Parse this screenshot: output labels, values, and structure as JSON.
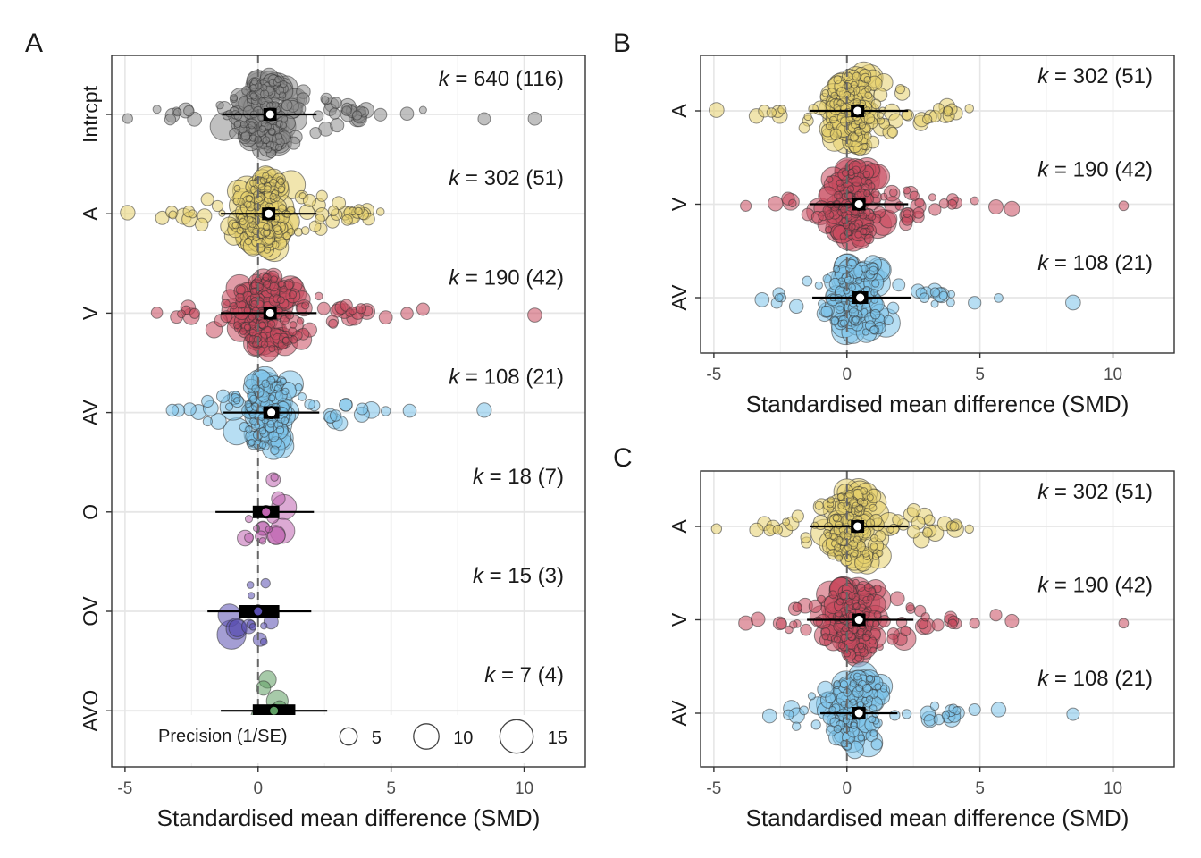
{
  "figure": {
    "panels": [
      {
        "id": "A",
        "label": "A"
      },
      {
        "id": "B",
        "label": "B"
      },
      {
        "id": "C",
        "label": "C"
      }
    ]
  },
  "colors": {
    "Intrcpt": "#8c8c8c",
    "A": "#e6cf6b",
    "V": "#c94a5f",
    "AV": "#7cc3ea",
    "O": "#c064b0",
    "OV": "#5a4fb0",
    "AVO": "#5e9e63",
    "grid": "#e6e6e6",
    "border": "#333333",
    "zero_line": "#666666"
  },
  "chart_data": [
    {
      "panel": "A",
      "type": "scatter",
      "subtype": "orchard plot (beeswarm of effect sizes with pooled estimate, confidence and prediction intervals)",
      "xlabel": "Standardised mean difference (SMD)",
      "ylabel": "",
      "xlim": [
        -5.5,
        12.3
      ],
      "xticks": [
        -5,
        0,
        5,
        10
      ],
      "grid": true,
      "zero_line": 0,
      "legend": {
        "title": "Precision (1/SE)",
        "sizes": [
          5,
          10,
          15
        ],
        "placement": "bottom-inside"
      },
      "categories": [
        "Intrcpt",
        "A",
        "V",
        "AV",
        "O",
        "OV",
        "AVO"
      ],
      "series": [
        {
          "name": "Intrcpt",
          "k": 640,
          "studies": 116,
          "k_label": "= 640 (116)",
          "estimate": 0.45,
          "ci": [
            0.2,
            0.7
          ],
          "pi": [
            -1.35,
            2.2
          ],
          "range": [
            -4.9,
            10.4
          ],
          "outliers": [
            -4.9,
            -3.8,
            -3.3,
            -2.6,
            4.6,
            5.6,
            6.2,
            8.5,
            10.4
          ]
        },
        {
          "name": "A",
          "k": 302,
          "studies": 51,
          "k_label": "= 302 (51)",
          "estimate": 0.4,
          "ci": [
            0.15,
            0.65
          ],
          "pi": [
            -1.4,
            2.2
          ],
          "range": [
            -4.9,
            4.6
          ],
          "outliers": [
            -4.9,
            -3.6,
            -3.2,
            -2.6,
            -1.9,
            4.1,
            4.6
          ]
        },
        {
          "name": "V",
          "k": 190,
          "studies": 42,
          "k_label": "= 190 (42)",
          "estimate": 0.45,
          "ci": [
            0.2,
            0.7
          ],
          "pi": [
            -1.4,
            2.2
          ],
          "range": [
            -3.8,
            10.4
          ],
          "outliers": [
            -3.8,
            4.1,
            4.8,
            5.6,
            6.2,
            10.4
          ]
        },
        {
          "name": "AV",
          "k": 108,
          "studies": 21,
          "k_label": "= 108 (21)",
          "estimate": 0.5,
          "ci": [
            0.2,
            0.8
          ],
          "pi": [
            -1.3,
            2.3
          ],
          "range": [
            -1.9,
            8.5
          ],
          "outliers": [
            -1.9,
            3.3,
            3.9,
            4.8,
            5.7,
            8.5
          ]
        },
        {
          "name": "O",
          "k": 18,
          "studies": 7,
          "k_label": "= 18 (7)",
          "estimate": 0.3,
          "ci": [
            -0.2,
            0.8
          ],
          "pi": [
            -1.6,
            2.1
          ],
          "range": [
            -0.6,
            1.2
          ]
        },
        {
          "name": "OV",
          "k": 15,
          "studies": 3,
          "k_label": "= 15 (3)",
          "estimate": 0.0,
          "ci": [
            -0.7,
            0.8
          ],
          "pi": [
            -1.9,
            2.0
          ],
          "range": [
            -1.1,
            1.2
          ]
        },
        {
          "name": "AVO",
          "k": 7,
          "studies": 4,
          "k_label": "= 7 (4)",
          "estimate": 0.6,
          "ci": [
            -0.2,
            1.4
          ],
          "pi": [
            -1.4,
            2.6
          ],
          "range": [
            0.0,
            2.3
          ]
        }
      ]
    },
    {
      "panel": "B",
      "type": "scatter",
      "subtype": "orchard plot",
      "xlabel": "Standardised mean difference (SMD)",
      "xlim": [
        -5.5,
        12.3
      ],
      "xticks": [
        -5,
        0,
        5,
        10
      ],
      "grid": true,
      "zero_line": 0,
      "categories": [
        "A",
        "V",
        "AV"
      ],
      "series": [
        {
          "name": "A",
          "k": 302,
          "studies": 51,
          "k_label": "= 302 (51)",
          "estimate": 0.4,
          "ci": [
            0.15,
            0.65
          ],
          "pi": [
            -1.4,
            2.3
          ],
          "range": [
            -4.9,
            4.6
          ],
          "outliers": [
            -4.9,
            -3.4,
            -3.1,
            -2.6,
            4.1,
            4.6
          ]
        },
        {
          "name": "V",
          "k": 190,
          "studies": 42,
          "k_label": "= 190 (42)",
          "estimate": 0.45,
          "ci": [
            0.2,
            0.7
          ],
          "pi": [
            -1.4,
            2.3
          ],
          "range": [
            -3.8,
            10.4
          ],
          "outliers": [
            -3.8,
            4.1,
            4.8,
            5.6,
            6.2,
            10.4
          ]
        },
        {
          "name": "AV",
          "k": 108,
          "studies": 21,
          "k_label": "= 108 (21)",
          "estimate": 0.5,
          "ci": [
            0.2,
            0.8
          ],
          "pi": [
            -1.3,
            2.4
          ],
          "range": [
            -1.9,
            8.5
          ],
          "outliers": [
            -1.9,
            3.3,
            3.9,
            4.8,
            5.7,
            8.5
          ]
        }
      ]
    },
    {
      "panel": "C",
      "type": "scatter",
      "subtype": "orchard plot",
      "xlabel": "Standardised mean difference (SMD)",
      "xlim": [
        -5.5,
        12.3
      ],
      "xticks": [
        -5,
        0,
        5,
        10
      ],
      "grid": true,
      "zero_line": 0,
      "categories": [
        "A",
        "V",
        "AV"
      ],
      "series": [
        {
          "name": "A",
          "k": 302,
          "studies": 51,
          "k_label": "= 302 (51)",
          "estimate": 0.4,
          "ci": [
            0.15,
            0.65
          ],
          "pi": [
            -1.4,
            2.3
          ],
          "range": [
            -4.9,
            4.6
          ],
          "outliers": [
            -4.9,
            -3.4,
            -3.1,
            -2.6,
            4.1,
            4.6
          ]
        },
        {
          "name": "V",
          "k": 190,
          "studies": 42,
          "k_label": "= 190 (42)",
          "estimate": 0.45,
          "ci": [
            0.2,
            0.7
          ],
          "pi": [
            -1.5,
            2.5
          ],
          "range": [
            -3.8,
            10.4
          ],
          "outliers": [
            -3.8,
            4.1,
            4.8,
            5.6,
            6.2,
            10.4
          ]
        },
        {
          "name": "AV",
          "k": 108,
          "studies": 21,
          "k_label": "= 108 (21)",
          "estimate": 0.45,
          "ci": [
            0.2,
            0.7
          ],
          "pi": [
            -1.0,
            1.9
          ],
          "range": [
            -1.9,
            8.5
          ],
          "outliers": [
            -1.9,
            3.3,
            3.9,
            4.8,
            5.7,
            8.5
          ]
        }
      ]
    }
  ]
}
